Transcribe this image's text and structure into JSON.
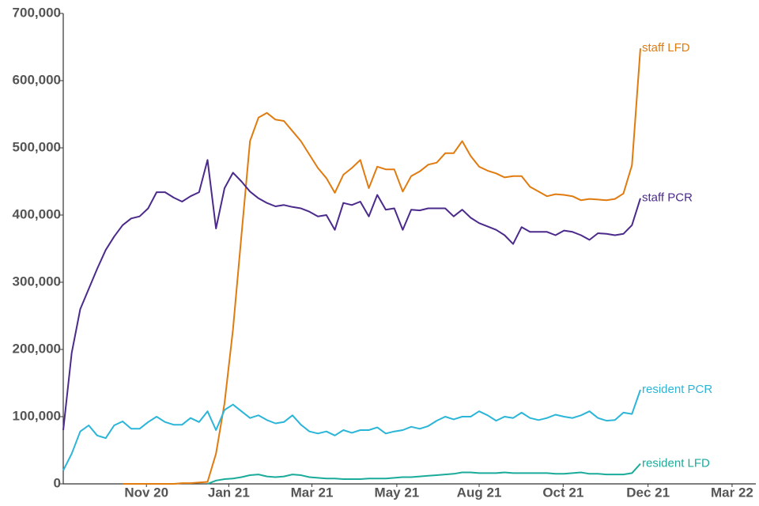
{
  "chart_data": {
    "type": "line",
    "x": [
      0,
      1,
      2,
      3,
      4,
      5,
      6,
      7,
      8,
      9,
      10,
      11,
      12,
      13,
      14,
      15,
      16,
      17,
      18,
      19,
      20,
      21,
      22,
      23,
      24,
      25,
      26,
      27,
      28,
      29,
      30,
      31,
      32,
      33,
      34,
      35,
      36,
      37,
      38,
      39,
      40,
      41,
      42,
      43,
      44,
      45,
      46,
      47,
      48,
      49,
      50,
      51,
      52,
      53,
      54,
      55,
      56,
      57,
      58,
      59,
      60,
      61,
      62,
      63,
      64,
      65,
      66,
      67,
      68
    ],
    "xlim": [
      0,
      81.6
    ],
    "xticks": [
      {
        "value": 9.8,
        "label": "Nov 20"
      },
      {
        "value": 19.5,
        "label": "Jan 21"
      },
      {
        "value": 29.3,
        "label": "Mar 21"
      },
      {
        "value": 39.3,
        "label": "May 21"
      },
      {
        "value": 49.0,
        "label": "Aug 21"
      },
      {
        "value": 58.9,
        "label": "Oct 21"
      },
      {
        "value": 68.9,
        "label": "Dec 21"
      },
      {
        "value": 78.8,
        "label": "Mar 22"
      }
    ],
    "ylim": [
      0,
      700000
    ],
    "yticks": [
      0,
      {
        "value": 100000,
        "label": "100,000"
      },
      {
        "value": 200000,
        "label": "200,000"
      },
      {
        "value": 300000,
        "label": "300,000"
      },
      {
        "value": 400000,
        "label": "400,000"
      },
      {
        "value": 500000,
        "label": "500,000"
      },
      {
        "value": 600000,
        "label": "600,000"
      },
      {
        "value": 700000,
        "label": "700,000"
      }
    ],
    "series": [
      {
        "name": "staff LFD",
        "color": "#e07b10",
        "values": [
          null,
          null,
          null,
          null,
          null,
          null,
          null,
          0,
          0,
          0,
          0,
          0,
          0,
          0,
          1000,
          1000,
          2000,
          3000,
          45000,
          120000,
          230000,
          370000,
          510000,
          545000,
          552000,
          542000,
          540000,
          525000,
          510000,
          490000,
          470000,
          455000,
          433000,
          460000,
          470000,
          482000,
          440000,
          472000,
          468000,
          468000,
          435000,
          458000,
          465000,
          475000,
          478000,
          492000,
          492000,
          510000,
          488000,
          472000,
          466000,
          462000,
          456000,
          458000,
          458000,
          442000,
          435000,
          428000,
          431000,
          430000,
          428000,
          422000,
          424000,
          423000,
          422000,
          424000,
          432000,
          474000,
          648000
        ]
      },
      {
        "name": "staff PCR",
        "color": "#4b2a8c",
        "values": [
          80000,
          195000,
          260000,
          290000,
          320000,
          348000,
          368000,
          385000,
          395000,
          398000,
          410000,
          434000,
          434000,
          426000,
          420000,
          428000,
          434000,
          482000,
          380000,
          440000,
          463000,
          450000,
          435000,
          425000,
          418000,
          413000,
          415000,
          412000,
          410000,
          405000,
          398000,
          400000,
          378000,
          418000,
          415000,
          420000,
          398000,
          430000,
          408000,
          410000,
          378000,
          408000,
          407000,
          410000,
          410000,
          410000,
          398000,
          408000,
          396000,
          388000,
          383000,
          378000,
          370000,
          357000,
          382000,
          375000,
          375000,
          375000,
          370000,
          377000,
          375000,
          370000,
          363000,
          373000,
          372000,
          370000,
          372000,
          385000,
          425000
        ]
      },
      {
        "name": "resident PCR",
        "color": "#2bb5d8",
        "values": [
          20000,
          45000,
          78000,
          87000,
          72000,
          68000,
          87000,
          93000,
          82000,
          82000,
          92000,
          100000,
          92000,
          88000,
          88000,
          98000,
          92000,
          108000,
          80000,
          110000,
          118000,
          108000,
          98000,
          102000,
          95000,
          90000,
          92000,
          102000,
          88000,
          78000,
          75000,
          78000,
          72000,
          80000,
          76000,
          80000,
          80000,
          84000,
          75000,
          78000,
          80000,
          85000,
          82000,
          86000,
          94000,
          100000,
          96000,
          100000,
          100000,
          108000,
          102000,
          94000,
          100000,
          98000,
          106000,
          98000,
          95000,
          98000,
          103000,
          100000,
          98000,
          102000,
          108000,
          98000,
          94000,
          95000,
          106000,
          104000,
          140000
        ]
      },
      {
        "name": "resident LFD",
        "color": "#1aab9b",
        "values": [
          null,
          null,
          null,
          null,
          null,
          null,
          null,
          null,
          null,
          null,
          null,
          null,
          null,
          null,
          null,
          null,
          null,
          0,
          5000,
          7000,
          8000,
          10000,
          13000,
          14000,
          11000,
          10000,
          11000,
          14000,
          13000,
          10000,
          9000,
          8000,
          8000,
          7000,
          7000,
          7000,
          8000,
          8000,
          8000,
          9000,
          10000,
          10000,
          11000,
          12000,
          13000,
          14000,
          15000,
          17000,
          17000,
          16000,
          16000,
          16000,
          17000,
          16000,
          16000,
          16000,
          16000,
          16000,
          15000,
          15000,
          16000,
          17000,
          15000,
          15000,
          14000,
          14000,
          14000,
          16000,
          30000
        ]
      }
    ]
  }
}
